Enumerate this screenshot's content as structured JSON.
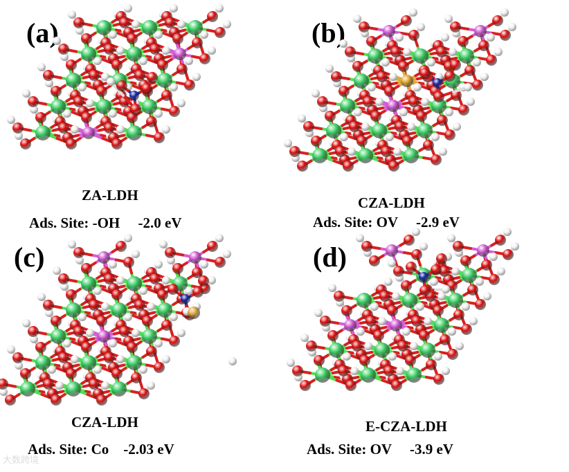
{
  "colors": {
    "zn": "#3fd06a",
    "o": "#e01010",
    "h": "#f4f4f4",
    "al": "#d55ed6",
    "co": "#e0a838",
    "n": "#1a2aa8",
    "bond_green": "#55dd55",
    "bond_red": "#d92020"
  },
  "panels": [
    {
      "letter": "(a)",
      "name": "ZA-LDH",
      "site_label": "Ads. Site: -OH",
      "energy": "-2.0 eV"
    },
    {
      "letter": "(b)",
      "name": "CZA-LDH",
      "site_label": "Ads. Site: OV",
      "energy": "-2.9 eV"
    },
    {
      "letter": "(c)",
      "name": "CZA-LDH",
      "site_label": "Ads. Site: Co",
      "energy": "-2.03 eV"
    },
    {
      "letter": "(d)",
      "name": "E-CZA-LDH",
      "site_label": "Ads. Site: OV",
      "energy": "-3.9 eV"
    }
  ],
  "watermark": "大数跨境"
}
